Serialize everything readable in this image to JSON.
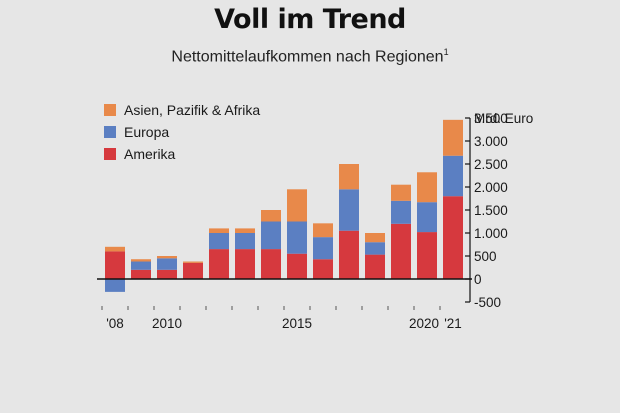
{
  "header": {
    "title": "Voll im Trend",
    "subtitle": "Nettomittelaufkommen nach Regionen",
    "footnote_mark": "1"
  },
  "colors": {
    "Asien, Pazifik & Afrika": "#e8894a",
    "Europa": "#5b7fc2",
    "Amerika": "#d6393e",
    "background": "#e6e6e6",
    "axis": "#111111"
  },
  "chart_data": {
    "type": "bar",
    "stacked": true,
    "x": [
      "2008",
      "2009",
      "2010",
      "2011",
      "2012",
      "2013",
      "2014",
      "2015",
      "2016",
      "2017",
      "2018",
      "2019",
      "2020",
      "2021"
    ],
    "x_tick_labels": [
      {
        "x": "2008",
        "label": "'08"
      },
      {
        "x": "2010",
        "label": "2010"
      },
      {
        "x": "2015",
        "label": "2015"
      },
      {
        "x": "2020",
        "label": "2020"
      },
      {
        "x": "2021",
        "label": "'21"
      }
    ],
    "series": [
      {
        "name": "Amerika",
        "values": [
          600,
          200,
          200,
          350,
          650,
          650,
          650,
          550,
          430,
          1050,
          530,
          1200,
          1020,
          1800
        ]
      },
      {
        "name": "Europa",
        "values": [
          -280,
          180,
          250,
          0,
          350,
          350,
          600,
          700,
          480,
          900,
          270,
          500,
          650,
          880
        ]
      },
      {
        "name": "Asien, Pazifik & Afrika",
        "values": [
          100,
          50,
          50,
          30,
          100,
          100,
          250,
          700,
          300,
          550,
          200,
          350,
          650,
          780
        ]
      }
    ],
    "y_ticks": [
      -500,
      0,
      500,
      1000,
      1500,
      2000,
      2500,
      3000,
      3500
    ],
    "y_tick_labels": [
      "-500",
      "0",
      "500",
      "1.000",
      "1.500",
      "2.000",
      "2.500",
      "3.000",
      "3.500"
    ],
    "ylabel": "Mrd. Euro",
    "ylim": [
      -500,
      3500
    ],
    "legend_position": "top-left",
    "grid": false
  }
}
